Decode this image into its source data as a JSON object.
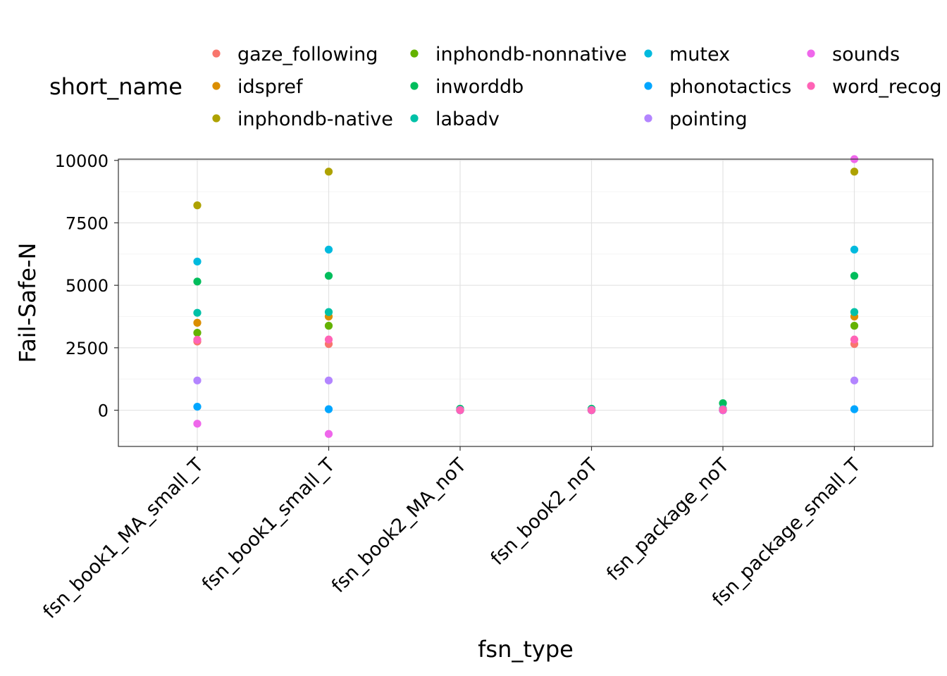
{
  "chart_data": {
    "type": "scatter",
    "xlabel": "fsn_type",
    "ylabel": "Fail-Safe-N",
    "categories": [
      "fsn_book1_MA_small_T",
      "fsn_book1_small_T",
      "fsn_book2_MA_noT",
      "fsn_book2_noT",
      "fsn_package_noT",
      "fsn_package_small_T"
    ],
    "ylim": [
      -1450,
      10050
    ],
    "yticks": [
      0,
      2500,
      5000,
      7500,
      10000
    ],
    "grid": true,
    "legend": {
      "title": "short_name",
      "position": "top",
      "entries": [
        "gaze_following",
        "idspref",
        "inphondb-native",
        "inphondb-nonnative",
        "inworddb",
        "labadv",
        "mutex",
        "phonotactics",
        "pointing",
        "sounds",
        "word_recog"
      ]
    },
    "series": [
      {
        "name": "gaze_following",
        "color": "#F8766D",
        "values": [
          2750,
          2650,
          0,
          0,
          0,
          2650
        ]
      },
      {
        "name": "idspref",
        "color": "#DB8E00",
        "values": [
          3500,
          3750,
          0,
          0,
          0,
          3750
        ]
      },
      {
        "name": "inphondb-native",
        "color": "#AEA200",
        "values": [
          8200,
          9550,
          0,
          0,
          0,
          9550
        ]
      },
      {
        "name": "inphondb-nonnative",
        "color": "#64B200",
        "values": [
          3100,
          3380,
          0,
          0,
          0,
          3380
        ]
      },
      {
        "name": "inworddb",
        "color": "#00BD5C",
        "values": [
          5150,
          5380,
          60,
          60,
          280,
          5380
        ]
      },
      {
        "name": "labadv",
        "color": "#00C1A7",
        "values": [
          3900,
          3930,
          30,
          30,
          60,
          3930
        ]
      },
      {
        "name": "mutex",
        "color": "#00BADE",
        "values": [
          5950,
          6430,
          0,
          0,
          0,
          6430
        ]
      },
      {
        "name": "phonotactics",
        "color": "#00A6FF",
        "values": [
          140,
          40,
          0,
          0,
          0,
          40
        ]
      },
      {
        "name": "pointing",
        "color": "#B385FF",
        "values": [
          1190,
          1190,
          0,
          0,
          0,
          1190
        ]
      },
      {
        "name": "sounds",
        "color": "#EF67EB",
        "values": [
          -540,
          -950,
          0,
          0,
          0,
          10050
        ]
      },
      {
        "name": "word_recog",
        "color": "#FF63B6",
        "values": [
          2820,
          2830,
          10,
          10,
          30,
          2830
        ]
      }
    ]
  }
}
